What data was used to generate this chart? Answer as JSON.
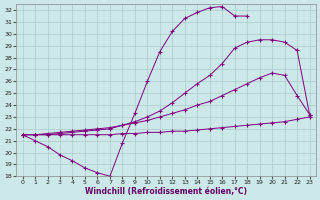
{
  "xlabel": "Windchill (Refroidissement éolien,°C)",
  "xlim": [
    -0.5,
    23.5
  ],
  "ylim": [
    18,
    32.5
  ],
  "yticks": [
    18,
    19,
    20,
    21,
    22,
    23,
    24,
    25,
    26,
    27,
    28,
    29,
    30,
    31,
    32
  ],
  "xticks": [
    0,
    1,
    2,
    3,
    4,
    5,
    6,
    7,
    8,
    9,
    10,
    11,
    12,
    13,
    14,
    15,
    16,
    17,
    18,
    19,
    20,
    21,
    22,
    23
  ],
  "background_color": "#cce8e8",
  "grid_color": "#aacccc",
  "line_color": "#800080",
  "curves": [
    {
      "x": [
        0,
        1,
        2,
        3,
        4,
        5,
        6,
        7,
        8,
        9,
        10,
        11,
        12,
        13,
        14,
        15,
        16,
        17,
        18
      ],
      "y": [
        21.5,
        21.0,
        20.5,
        19.8,
        19.3,
        18.7,
        18.3,
        18.0,
        20.8,
        23.3,
        26.0,
        28.5,
        30.2,
        31.3,
        31.8,
        32.2,
        32.3,
        31.5,
        31.5
      ]
    },
    {
      "x": [
        0,
        1,
        2,
        3,
        4,
        5,
        6,
        7,
        8,
        9,
        10,
        11,
        12,
        13,
        14,
        15,
        16,
        17,
        18,
        19,
        20,
        21,
        22,
        23
      ],
      "y": [
        21.5,
        21.5,
        21.5,
        21.6,
        21.7,
        21.8,
        21.9,
        22.0,
        22.3,
        22.6,
        23.0,
        23.5,
        24.2,
        25.0,
        25.8,
        26.5,
        27.5,
        28.8,
        29.3,
        29.5,
        29.5,
        29.3,
        28.6,
        23.2
      ]
    },
    {
      "x": [
        0,
        1,
        2,
        3,
        4,
        5,
        6,
        7,
        8,
        9,
        10,
        11,
        12,
        13,
        14,
        15,
        16,
        17,
        18,
        19,
        20,
        21,
        22,
        23
      ],
      "y": [
        21.5,
        21.5,
        21.6,
        21.7,
        21.8,
        21.9,
        22.0,
        22.1,
        22.3,
        22.5,
        22.7,
        23.0,
        23.3,
        23.6,
        24.0,
        24.3,
        24.8,
        25.3,
        25.8,
        26.3,
        26.7,
        26.5,
        24.8,
        23.2
      ]
    },
    {
      "x": [
        0,
        1,
        2,
        3,
        4,
        5,
        6,
        7,
        8,
        9,
        10,
        11,
        12,
        13,
        14,
        15,
        16,
        17,
        18,
        19,
        20,
        21,
        22,
        23
      ],
      "y": [
        21.5,
        21.5,
        21.5,
        21.5,
        21.5,
        21.5,
        21.5,
        21.5,
        21.6,
        21.6,
        21.7,
        21.7,
        21.8,
        21.8,
        21.9,
        22.0,
        22.1,
        22.2,
        22.3,
        22.4,
        22.5,
        22.6,
        22.8,
        23.0
      ]
    }
  ]
}
